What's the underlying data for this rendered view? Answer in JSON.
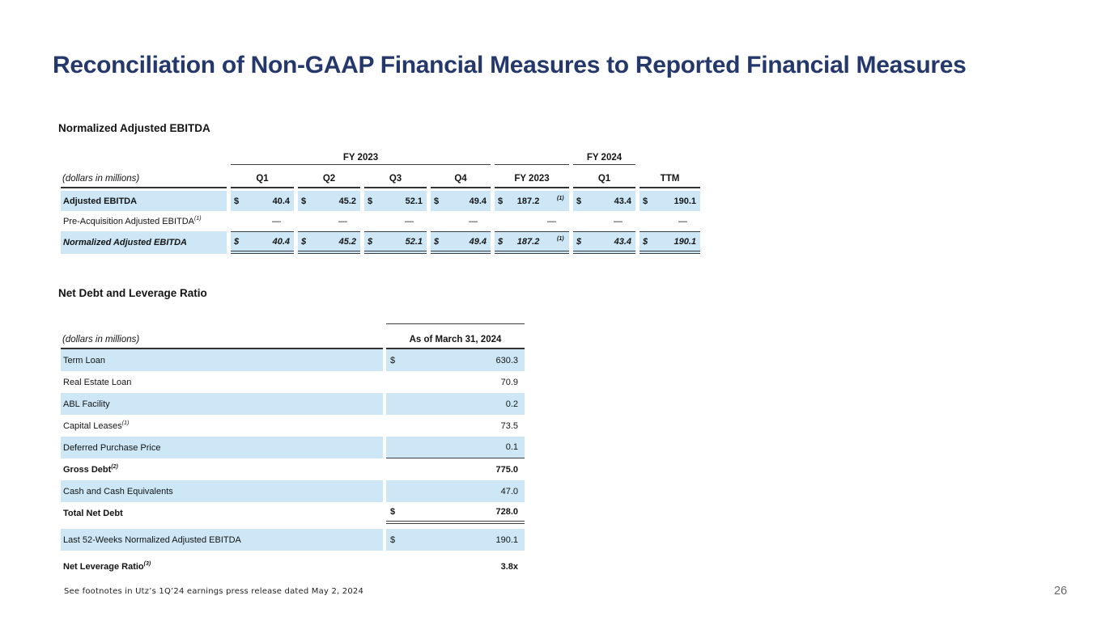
{
  "slide": {
    "title": "Reconciliation of Non-GAAP Financial Measures to Reported Financial Measures",
    "footnote": "See footnotes in Utz’s 1Q’24 earnings press release dated May 2, 2024",
    "page_number": "26"
  },
  "colors": {
    "title_navy": "#25386b",
    "row_highlight_blue": "#cde7f6",
    "rule_dark": "#3d3d3d",
    "text": "#141414",
    "page_number_gray": "#686868"
  },
  "ebitda_table": {
    "heading": "Normalized Adjusted EBITDA",
    "units_label": "(dollars in millions)",
    "group_fy2023": "FY 2023",
    "group_fy2024": "FY 2024",
    "column_headers": [
      "Q1",
      "Q2",
      "Q3",
      "Q4",
      "FY 2023",
      "Q1",
      "TTM"
    ],
    "rows": [
      {
        "label": "Adjusted EBITDA",
        "label_sup": "",
        "bold": true,
        "italic": false,
        "highlight": true,
        "rule_top": false,
        "rule_bottom": "",
        "cells": [
          {
            "dollar": "$",
            "value": "40.4",
            "sup": ""
          },
          {
            "dollar": "$",
            "value": "45.2",
            "sup": ""
          },
          {
            "dollar": "$",
            "value": "52.1",
            "sup": ""
          },
          {
            "dollar": "$",
            "value": "49.4",
            "sup": ""
          },
          {
            "dollar": "$",
            "value": "187.2",
            "sup": "(1)"
          },
          {
            "dollar": "$",
            "value": "43.4",
            "sup": ""
          },
          {
            "dollar": "$",
            "value": "190.1",
            "sup": ""
          }
        ]
      },
      {
        "label": "Pre-Acquisition Adjusted EBITDA",
        "label_sup": "(1)",
        "bold": false,
        "italic": false,
        "highlight": false,
        "rule_top": false,
        "rule_bottom": "",
        "cells": [
          {
            "dollar": "",
            "value": "—",
            "sup": ""
          },
          {
            "dollar": "",
            "value": "—",
            "sup": ""
          },
          {
            "dollar": "",
            "value": "—",
            "sup": ""
          },
          {
            "dollar": "",
            "value": "—",
            "sup": ""
          },
          {
            "dollar": "",
            "value": "—",
            "sup": ""
          },
          {
            "dollar": "",
            "value": "—",
            "sup": ""
          },
          {
            "dollar": "",
            "value": "—",
            "sup": ""
          }
        ]
      },
      {
        "label": "Normalized Adjusted EBITDA",
        "label_sup": "",
        "bold": true,
        "italic": true,
        "highlight": true,
        "rule_top": true,
        "rule_bottom": "double",
        "cells": [
          {
            "dollar": "$",
            "value": "40.4",
            "sup": ""
          },
          {
            "dollar": "$",
            "value": "45.2",
            "sup": ""
          },
          {
            "dollar": "$",
            "value": "52.1",
            "sup": ""
          },
          {
            "dollar": "$",
            "value": "49.4",
            "sup": ""
          },
          {
            "dollar": "$",
            "value": "187.2",
            "sup": "(1)"
          },
          {
            "dollar": "$",
            "value": "43.4",
            "sup": ""
          },
          {
            "dollar": "$",
            "value": "190.1",
            "sup": ""
          }
        ]
      }
    ]
  },
  "net_debt_table": {
    "heading": "Net Debt and Leverage Ratio",
    "units_label": "(dollars in millions)",
    "value_column_header": "As of March 31, 2024",
    "rows": [
      {
        "label": "Term Loan",
        "label_sup": "",
        "bold": false,
        "highlight": true,
        "dollar": "$",
        "value": "630.3",
        "rule_bottom": ""
      },
      {
        "label": "Real Estate Loan",
        "label_sup": "",
        "bold": false,
        "highlight": false,
        "dollar": "",
        "value": "70.9",
        "rule_bottom": ""
      },
      {
        "label": "ABL Facility",
        "label_sup": "",
        "bold": false,
        "highlight": true,
        "dollar": "",
        "value": "0.2",
        "rule_bottom": ""
      },
      {
        "label": "Capital Leases",
        "label_sup": "(1)",
        "bold": false,
        "highlight": false,
        "dollar": "",
        "value": "73.5",
        "rule_bottom": ""
      },
      {
        "label": "Deferred Purchase Price",
        "label_sup": "",
        "bold": false,
        "highlight": true,
        "dollar": "",
        "value": "0.1",
        "rule_bottom": "single"
      },
      {
        "label": "Gross Debt",
        "label_sup": "(2)",
        "bold": true,
        "highlight": false,
        "dollar": "",
        "value": "775.0",
        "rule_bottom": ""
      },
      {
        "label": "Cash and Cash Equivalents",
        "label_sup": "",
        "bold": false,
        "highlight": true,
        "dollar": "",
        "value": "47.0",
        "rule_bottom": ""
      },
      {
        "label": "Total Net Debt",
        "label_sup": "",
        "bold": true,
        "highlight": false,
        "dollar": "$",
        "value": "728.0",
        "rule_bottom": "double"
      },
      {
        "label": "Last 52-Weeks Normalized Adjusted EBITDA",
        "label_sup": "",
        "bold": false,
        "highlight": true,
        "dollar": "$",
        "value": "190.1",
        "rule_bottom": ""
      },
      {
        "label": "Net Leverage Ratio",
        "label_sup": "(3)",
        "bold": true,
        "highlight": false,
        "dollar": "",
        "value": "3.8x",
        "rule_bottom": ""
      }
    ]
  }
}
